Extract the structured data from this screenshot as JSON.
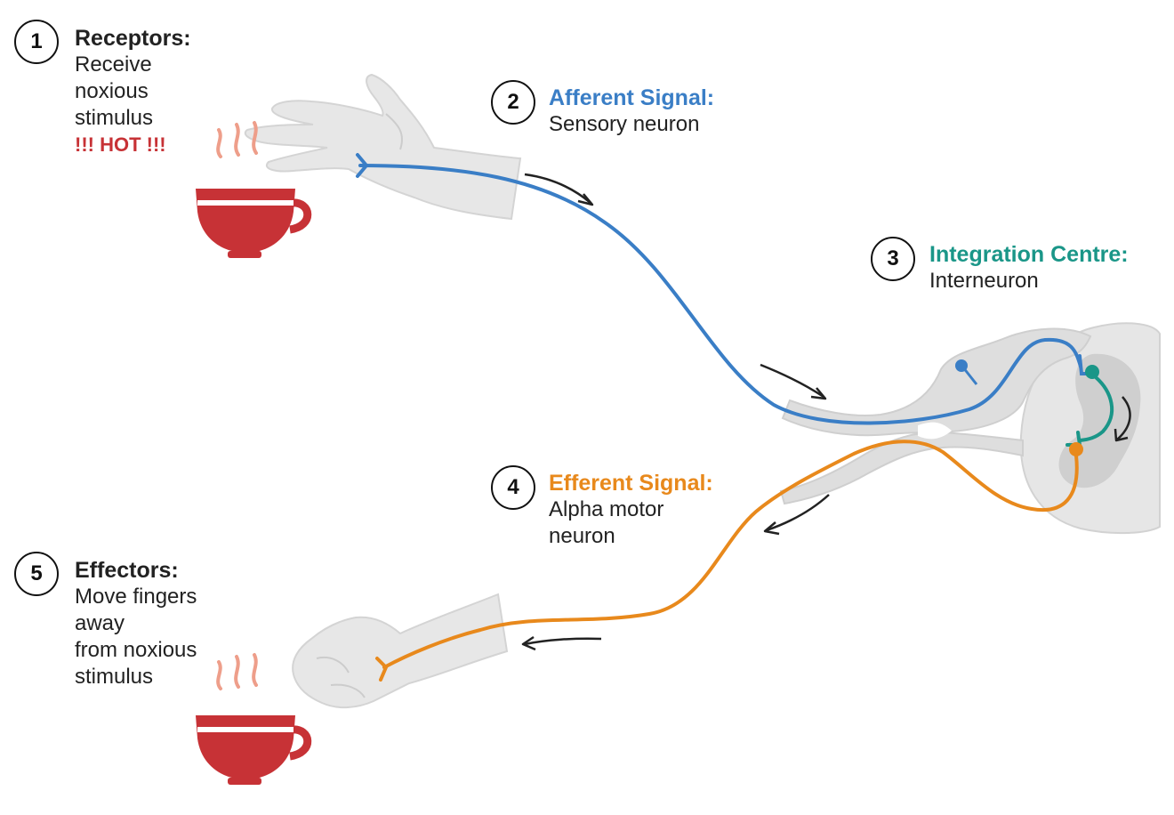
{
  "colors": {
    "afferent": "#3a7ec6",
    "integration": "#1a9688",
    "efferent": "#e8891c",
    "hot": "#c73236",
    "cup": "#c73236",
    "steam": "#ee9e8a",
    "anatomy": "#dedede",
    "arrow": "#222222"
  },
  "steps": [
    {
      "number": "1",
      "title": "Receptors:",
      "lines": [
        "Receive",
        "noxious",
        "stimulus"
      ],
      "alert": "!!! HOT !!!"
    },
    {
      "number": "2",
      "title": "Afferent Signal:",
      "lines": [
        "Sensory neuron"
      ]
    },
    {
      "number": "3",
      "title": "Integration Centre:",
      "lines": [
        "Interneuron"
      ]
    },
    {
      "number": "4",
      "title": "Efferent Signal:",
      "lines": [
        "Alpha motor",
        "neuron"
      ]
    },
    {
      "number": "5",
      "title": "Effectors:",
      "lines": [
        "Move fingers",
        "away",
        "from noxious",
        "stimulus"
      ]
    }
  ],
  "icons": [
    "hot-cup-icon",
    "open-hand-icon",
    "closed-fist-icon",
    "spinal-cord-icon",
    "flow-arrow-icon"
  ]
}
